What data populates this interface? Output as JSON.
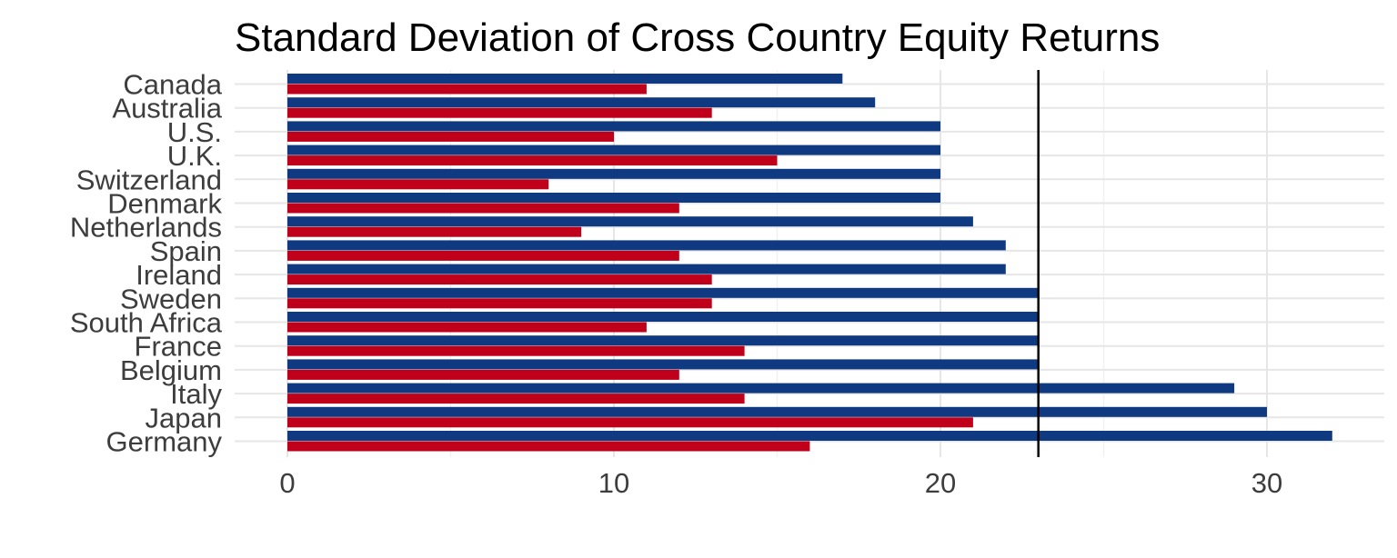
{
  "chart_data": {
    "type": "bar",
    "orientation": "horizontal",
    "title": "Standard Deviation of Cross Country Equity Returns",
    "xlabel": "",
    "ylabel": "",
    "categories": [
      "Canada",
      "Australia",
      "U.S.",
      "U.K.",
      "Switzerland",
      "Denmark",
      "Netherlands",
      "Spain",
      "Ireland",
      "Sweden",
      "South Africa",
      "France",
      "Belgium",
      "Italy",
      "Japan",
      "Germany"
    ],
    "series": [
      {
        "color": "#0f3a82",
        "values": [
          17,
          18,
          20,
          20,
          20,
          20,
          21,
          22,
          22,
          23,
          23,
          23,
          23,
          29,
          30,
          32
        ]
      },
      {
        "color": "#c0001a",
        "values": [
          11,
          13,
          10,
          15,
          8,
          12,
          9,
          12,
          13,
          13,
          11,
          14,
          12,
          14,
          21,
          16
        ]
      }
    ],
    "xlim": [
      0,
      33.5
    ],
    "xticks": [
      0,
      10,
      20,
      30
    ],
    "xtick_labels": [
      "0",
      "10",
      "20",
      "30"
    ],
    "reference_line": {
      "x": 23,
      "color": "#000000"
    },
    "grid": true,
    "legend": "none"
  }
}
